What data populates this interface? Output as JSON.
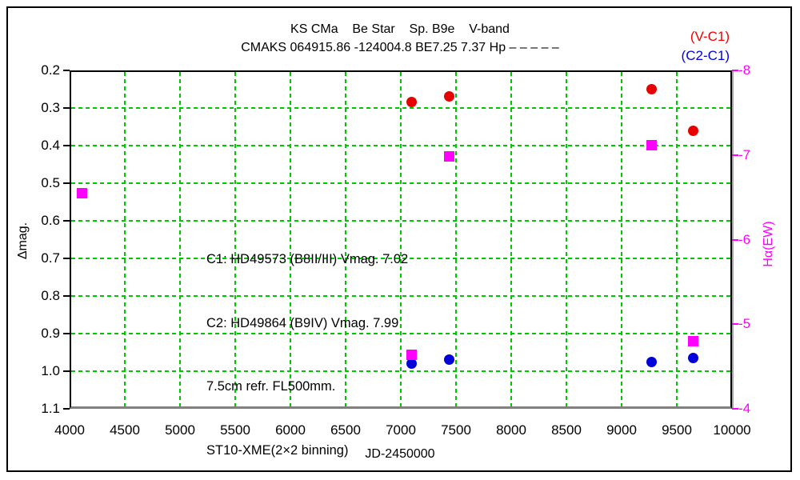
{
  "chart_data": {
    "type": "scatter",
    "title": "KS CMa    Be Star    Sp. B9e    V-band",
    "subtitle": "CMAKS 064915.86 -124004.8 BE7.25 7.37 Hp – – – – –",
    "xlabel": "JD-2450000",
    "ylabel_left": "Δmag.",
    "ylabel_right": "Hα(EW)",
    "xlim": [
      4000,
      10000
    ],
    "ylim_left": [
      0.2,
      1.1
    ],
    "ylim_right": [
      -8,
      -4
    ],
    "x_ticks": [
      4000,
      4500,
      5000,
      5500,
      6000,
      6500,
      7000,
      7500,
      8000,
      8500,
      9000,
      9500,
      10000
    ],
    "y_ticks_left": [
      "0.2",
      "0.3",
      "0.4",
      "0.5",
      "0.6",
      "0.7",
      "0.8",
      "0.9",
      "1.0",
      "1.1"
    ],
    "y_ticks_right": [
      "-8",
      "-7",
      "-6",
      "-5",
      "-4"
    ],
    "grid": true,
    "grid_color": "#00c800",
    "axis_color_left": "#000000",
    "axis_color_right": "#ff00ff",
    "legend_position": "top-right",
    "legend": [
      {
        "label": "(V-C1)",
        "color": "#f00000"
      },
      {
        "label": "(C2-C1)",
        "color": "#0000e0"
      }
    ],
    "series": [
      {
        "name": "(V-C1)",
        "marker": "circle",
        "color": "#e80000",
        "axis": "left",
        "points": [
          [
            7100,
            0.285
          ],
          [
            7440,
            0.27
          ],
          [
            9270,
            0.25
          ],
          [
            9650,
            0.36
          ]
        ]
      },
      {
        "name": "(C2-C1)",
        "marker": "circle",
        "color": "#0000d8",
        "axis": "left",
        "points": [
          [
            7100,
            0.98
          ],
          [
            7440,
            0.97
          ],
          [
            9270,
            0.975
          ],
          [
            9650,
            0.965
          ]
        ]
      },
      {
        "name": "Hα(EW)",
        "marker": "square",
        "color": "#ff00ff",
        "axis": "right",
        "points": [
          [
            4110,
            -6.55
          ],
          [
            7100,
            -4.64
          ],
          [
            7440,
            -6.98
          ],
          [
            9270,
            -7.12
          ],
          [
            9650,
            -4.8
          ]
        ]
      }
    ],
    "annotation_lines": [
      "C1: HD49573 (B8II/III) Vmag. 7.02",
      "C2: HD49864 (B9IV) Vmag. 7.99",
      "7.5cm refr. FL500mm.",
      "ST10-XME(2×2 binning)"
    ]
  }
}
